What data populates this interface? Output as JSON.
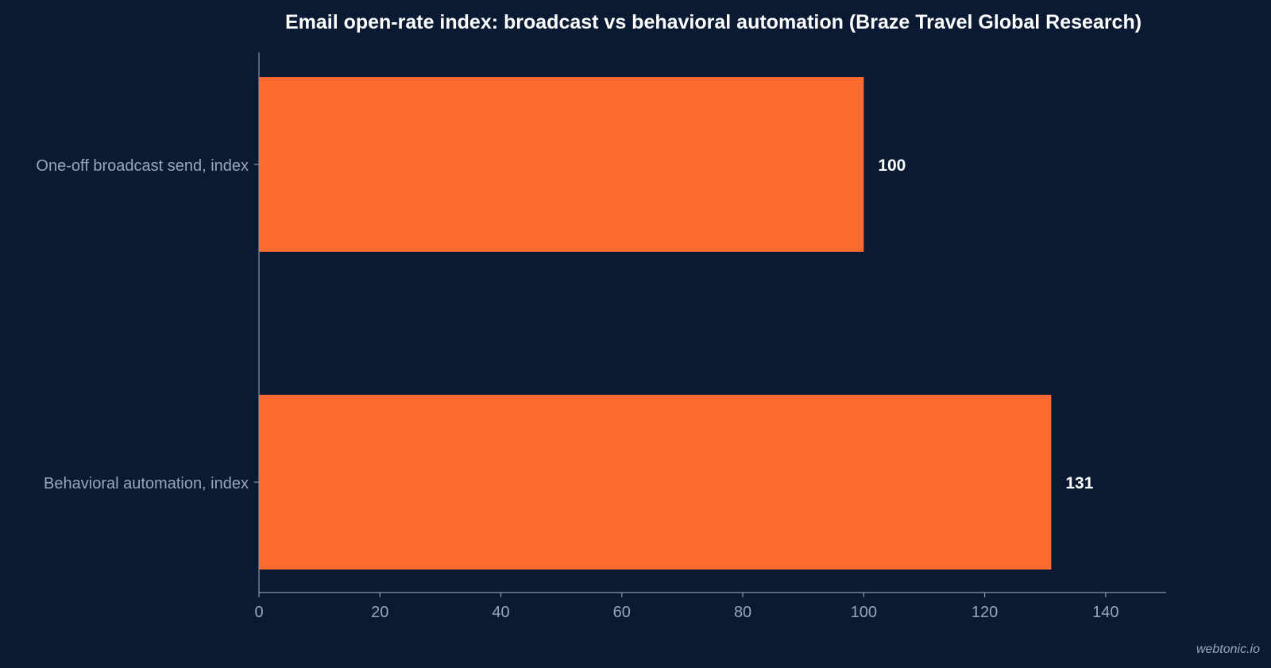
{
  "chart_data": {
    "type": "bar",
    "orientation": "horizontal",
    "title": "Email open-rate index: broadcast vs behavioral automation (Braze Travel Global Research)",
    "xlabel": "",
    "ylabel": "",
    "categories": [
      "One-off broadcast send, index",
      "Behavioral automation, index"
    ],
    "values": [
      100,
      131
    ],
    "data_labels": [
      "100",
      "131"
    ],
    "xlim": [
      0,
      150
    ],
    "xticks": [
      0,
      20,
      40,
      60,
      80,
      100,
      120,
      140
    ],
    "grid": false,
    "legend": "none"
  },
  "watermark": "webtonic.io",
  "colors": {
    "background": "#0b1a33",
    "bar": "#ff6a30",
    "axis": "#8a96a8",
    "tick_text": "#9aa6b8",
    "title_text": "#ffffff",
    "value_text": "#ffffff"
  }
}
